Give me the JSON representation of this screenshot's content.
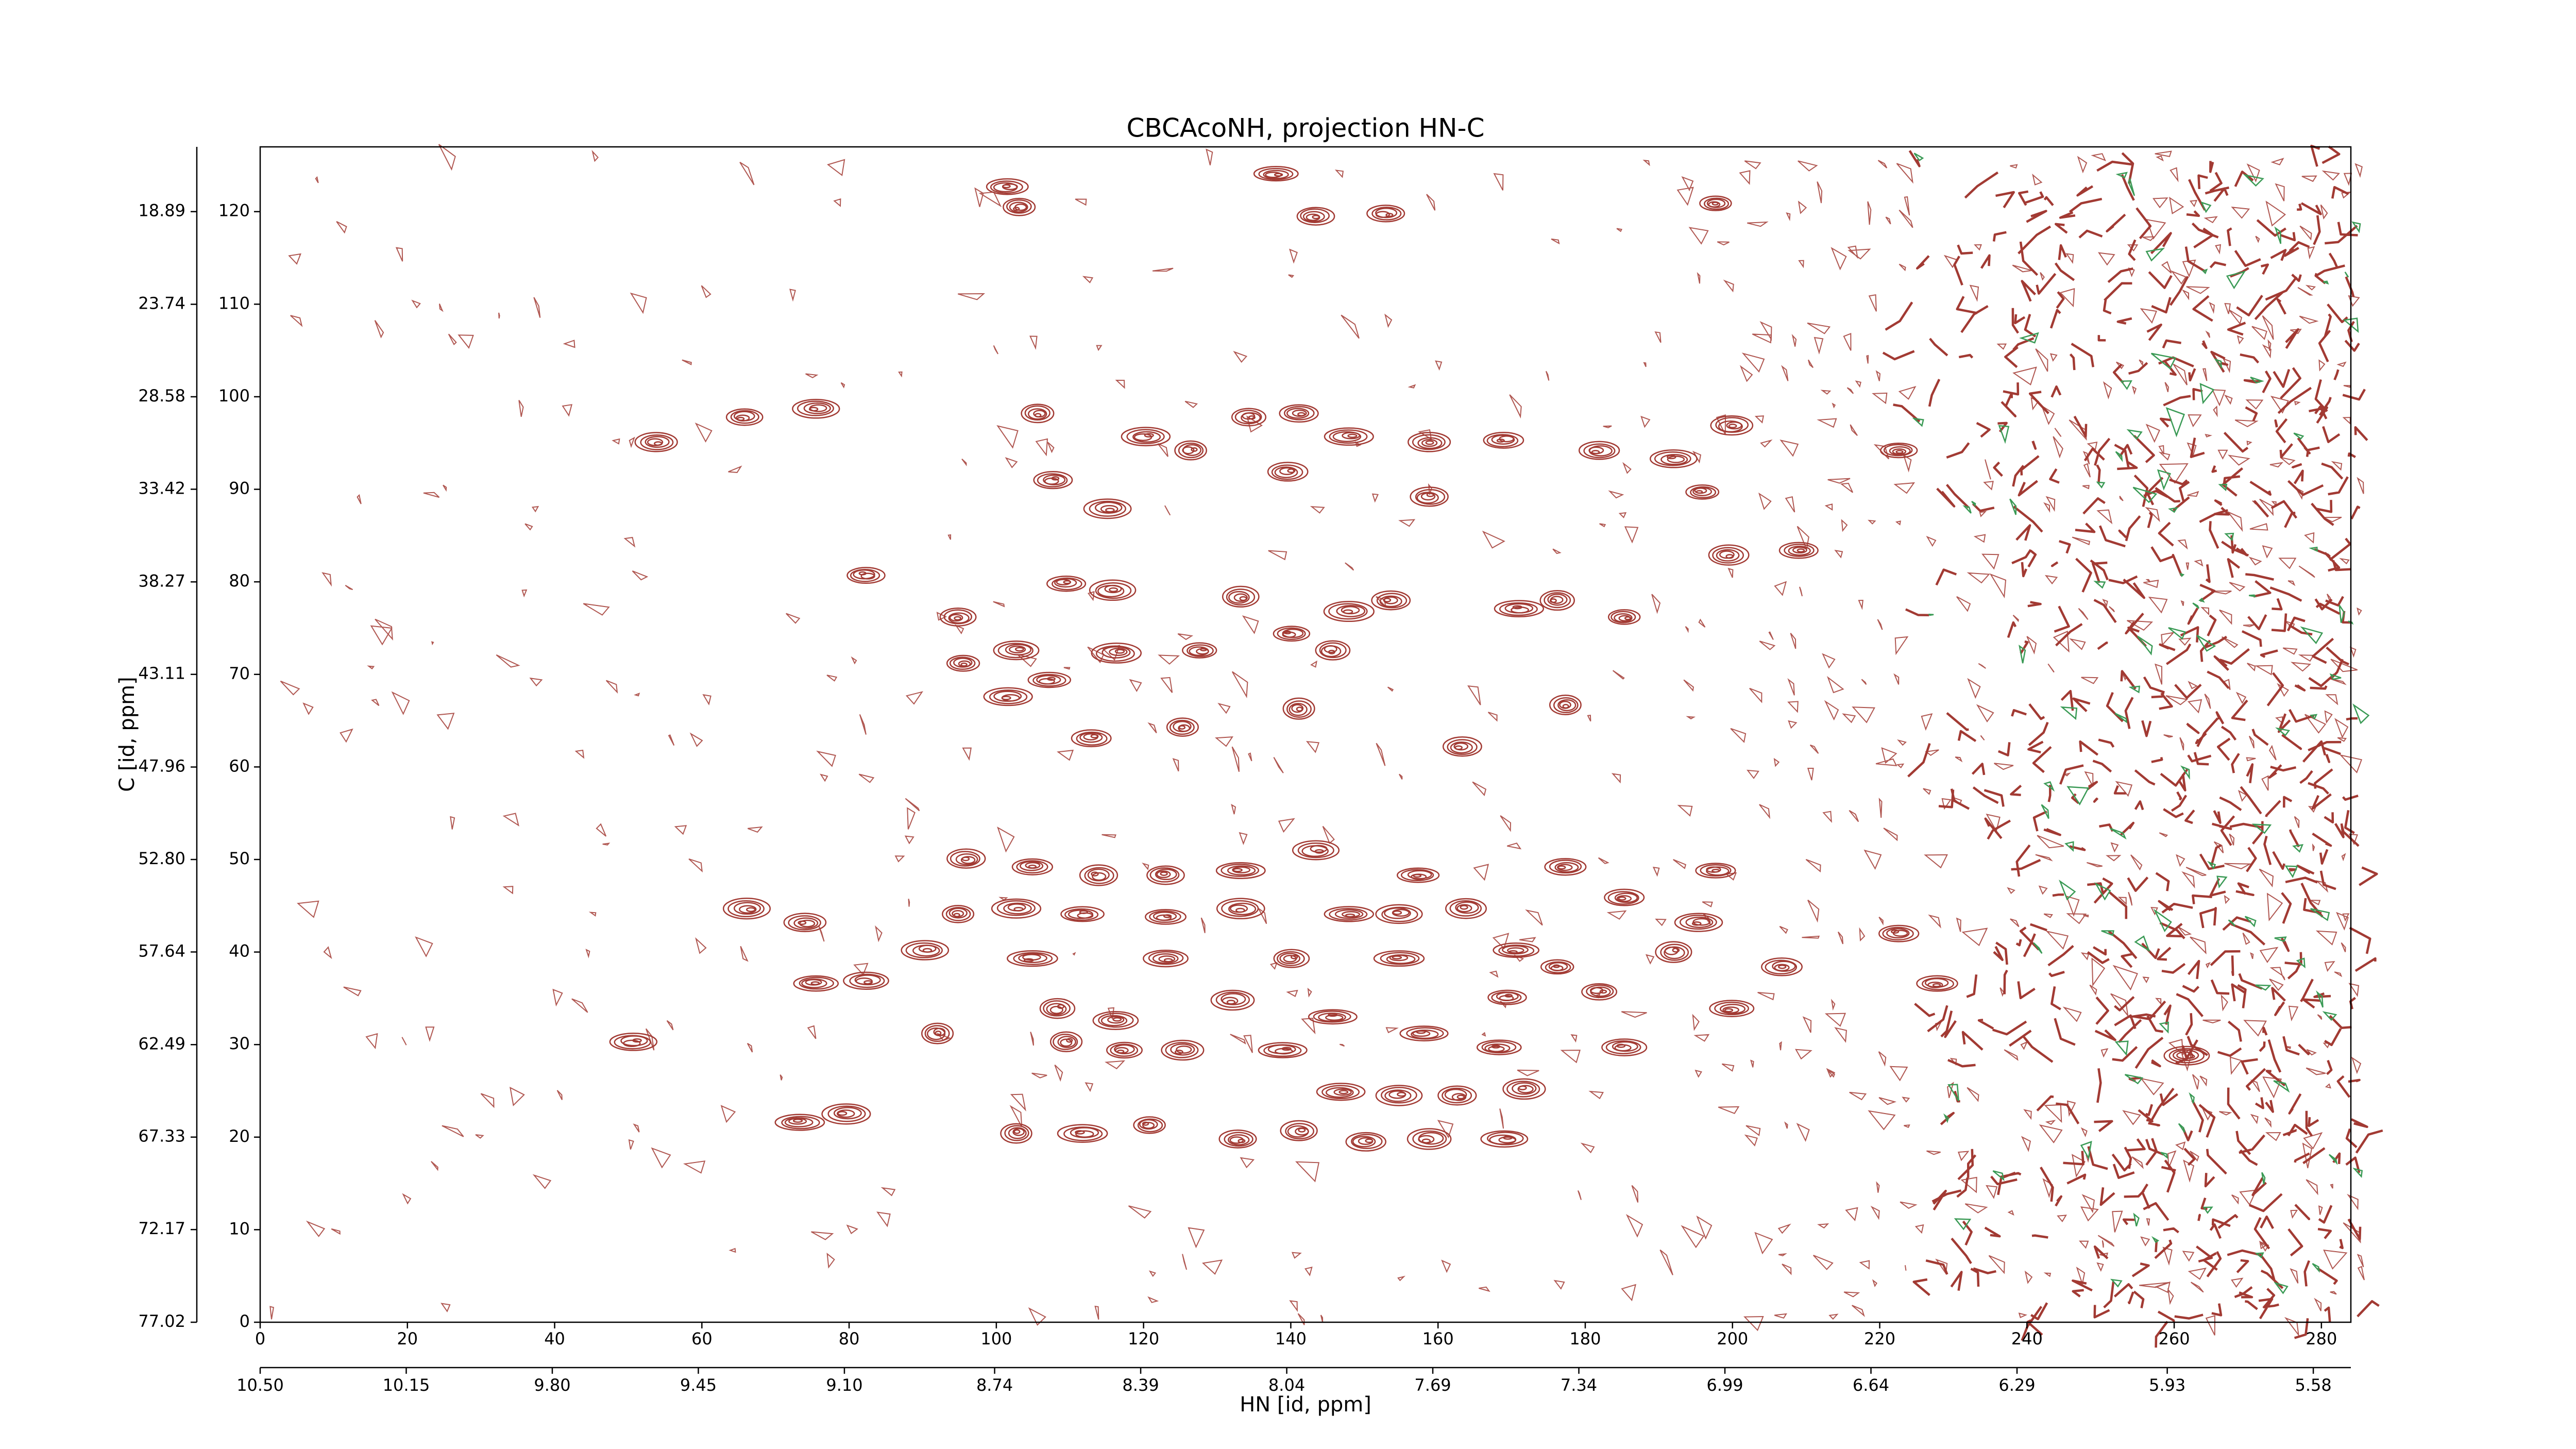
{
  "chart_data": {
    "type": "contour",
    "title": "CBCAcoNH, projection HN-C",
    "xlabel": "HN [id, ppm]",
    "ylabel": "C [id, ppm]",
    "color": "#a23a33",
    "xlim": [
      0,
      284
    ],
    "xticks": [
      0,
      20,
      40,
      60,
      80,
      100,
      120,
      140,
      160,
      180,
      200,
      220,
      240,
      260,
      280
    ],
    "ylim": [
      0,
      127
    ],
    "yticks": [
      0,
      10,
      20,
      30,
      40,
      50,
      60,
      70,
      80,
      90,
      100,
      110,
      120
    ],
    "x2lim": [
      10.5,
      5.49
    ],
    "x2ticks": [
      {
        "value": 10.5,
        "label": "10.50"
      },
      10.15,
      {
        "value": 9.8,
        "label": "9.80"
      },
      9.45,
      {
        "value": 9.1,
        "label": "9.10"
      },
      8.74,
      8.39,
      8.04,
      7.69,
      7.34,
      6.99,
      6.64,
      6.29,
      5.93,
      5.58
    ],
    "y2lim": [
      77.02,
      15.5
    ],
    "y2ticks": [
      77.02,
      72.17,
      67.33,
      62.49,
      57.64,
      {
        "value": 52.8,
        "label": "52.80"
      },
      47.96,
      43.11,
      38.27,
      33.42,
      28.58,
      23.74,
      18.89
    ],
    "x": [
      103.1,
      101.5,
      138,
      143.4,
      152.9,
      197.7,
      53.8,
      65.8,
      75.5,
      105.6,
      120.3,
      134.3,
      141.1,
      147.9,
      158.8,
      168.9,
      181.9,
      192.0,
      199.9,
      195.9,
      222.6,
      107.7,
      126.4,
      139.6,
      158.8,
      115.1,
      199.5,
      209,
      82.3,
      94.8,
      109.5,
      115.8,
      133.2,
      147.9,
      153.6,
      171.0,
      176.2,
      185.3,
      95.5,
      102.7,
      116.3,
      127.6,
      140.1,
      145.7,
      101.6,
      107.2,
      112.9,
      125.3,
      141.1,
      163.3,
      177.3,
      95.9,
      104.9,
      113.9,
      123.0,
      133.2,
      143.4,
      157.3,
      177.3,
      185.3,
      197.7,
      66.1,
      74.0,
      94.8,
      102.7,
      111.7,
      123.0,
      133.2,
      147.9,
      154.7,
      163.8,
      195.4,
      222.6,
      192.0,
      90.3,
      104.9,
      123.0,
      140.1,
      154.7,
      170.6,
      176.2,
      206.7,
      227.8,
      75.5,
      82.3,
      108.3,
      116.2,
      132.1,
      145.7,
      169.4,
      181.9,
      199.9,
      50.7,
      92.0,
      109.5,
      117.4,
      125.3,
      138.9,
      158.1,
      168.3,
      185.3,
      261.7,
      146.8,
      154.7,
      162.6,
      171.7,
      73.3,
      79.6,
      102.7,
      111.7,
      120.8,
      132.8,
      141.1,
      150.2,
      158.8,
      169.0
    ],
    "values": [
      120.5,
      122.7,
      124.1,
      119.5,
      119.8,
      120.9,
      95.1,
      97.8,
      98.7,
      98.2,
      95.7,
      97.8,
      98.2,
      95.7,
      95.1,
      95.3,
      94.2,
      93.3,
      96.9,
      89.7,
      94.2,
      91.0,
      94.2,
      91.9,
      89.2,
      87.9,
      82.9,
      83.4,
      80.7,
      76.2,
      79.8,
      79.1,
      78.4,
      76.8,
      78.0,
      77.1,
      78.0,
      76.2,
      71.2,
      72.6,
      72.3,
      72.6,
      74.4,
      72.6,
      67.6,
      69.4,
      63.1,
      64.3,
      66.3,
      62.2,
      66.7,
      50.1,
      49.2,
      48.3,
      48.3,
      48.8,
      51.0,
      48.3,
      49.2,
      45.9,
      48.8,
      44.7,
      43.2,
      44.1,
      44.7,
      44.1,
      43.8,
      44.7,
      44.1,
      44.1,
      44.7,
      43.2,
      42.0,
      40.0,
      40.2,
      39.3,
      39.3,
      39.3,
      39.3,
      40.2,
      38.4,
      38.4,
      36.6,
      36.6,
      36.9,
      33.9,
      32.6,
      34.8,
      33.0,
      35.1,
      35.7,
      33.9,
      30.3,
      31.2,
      30.3,
      29.4,
      29.4,
      29.4,
      31.2,
      29.7,
      29.7,
      28.8,
      24.9,
      24.5,
      24.5,
      25.2,
      21.6,
      22.5,
      20.4,
      20.4,
      21.3,
      19.8,
      20.7,
      19.5,
      19.8,
      19.8
    ]
  }
}
